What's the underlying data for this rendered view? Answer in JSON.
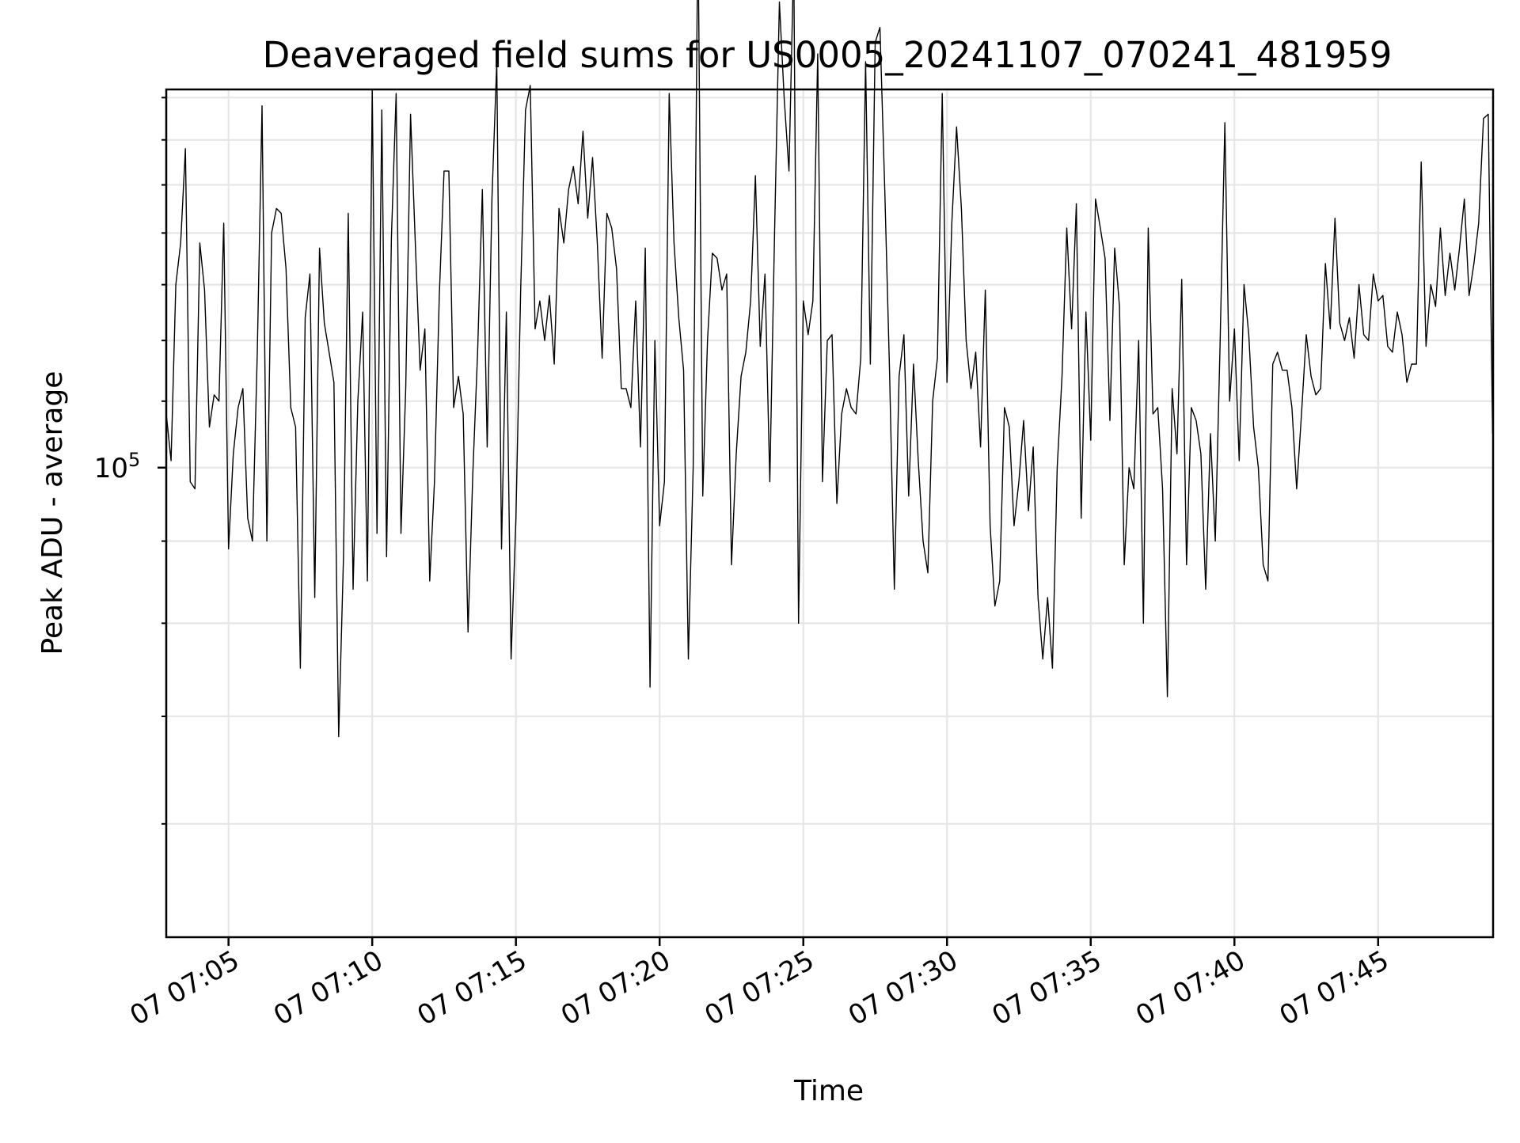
{
  "chart_data": {
    "type": "line",
    "title": "Deaveraged field sums for US0005_20241107_070241_481959",
    "xlabel": "Time",
    "ylabel": "Peak ADU - average",
    "x_tick_labels": [
      "07 07:05",
      "07 07:10",
      "07 07:15",
      "07 07:20",
      "07 07:25",
      "07 07:30",
      "07 07:35",
      "07 07:40",
      "07 07:45"
    ],
    "y_tick_labels": [
      {
        "base": "10",
        "exponent": "5",
        "value": 100000
      }
    ],
    "y_scale": "log",
    "ylim": [
      51000,
      172000
    ],
    "xlim": [
      "2024-11-07 07:02:50",
      "2024-11-07 07:49:00"
    ],
    "grid": true,
    "legend": "none",
    "line_color": "#000000",
    "series": [
      {
        "values": [
          [
            0,
            108000
          ],
          [
            10,
            101000
          ],
          [
            20,
            130000
          ],
          [
            30,
            138000
          ],
          [
            40,
            158000
          ],
          [
            50,
            98000
          ],
          [
            60,
            97000
          ],
          [
            70,
            138000
          ],
          [
            80,
            129000
          ],
          [
            90,
            106000
          ],
          [
            100,
            111000
          ],
          [
            110,
            110000
          ],
          [
            120,
            142000
          ],
          [
            130,
            89000
          ],
          [
            140,
            102000
          ],
          [
            150,
            109000
          ],
          [
            160,
            112000
          ],
          [
            170,
            93000
          ],
          [
            180,
            90000
          ],
          [
            190,
            118000
          ],
          [
            200,
            168000
          ],
          [
            210,
            90000
          ],
          [
            220,
            140000
          ],
          [
            230,
            145000
          ],
          [
            240,
            144000
          ],
          [
            250,
            133000
          ],
          [
            260,
            109000
          ],
          [
            270,
            106000
          ],
          [
            280,
            75000
          ],
          [
            290,
            124000
          ],
          [
            300,
            132000
          ],
          [
            310,
            83000
          ],
          [
            320,
            137000
          ],
          [
            330,
            123000
          ],
          [
            340,
            118000
          ],
          [
            350,
            113000
          ],
          [
            360,
            68000
          ],
          [
            370,
            88000
          ],
          [
            380,
            144000
          ],
          [
            390,
            84000
          ],
          [
            400,
            110000
          ],
          [
            410,
            125000
          ],
          [
            420,
            85000
          ],
          [
            430,
            172000
          ],
          [
            440,
            91000
          ],
          [
            450,
            167000
          ],
          [
            460,
            88000
          ],
          [
            470,
            139000
          ],
          [
            480,
            171000
          ],
          [
            490,
            91000
          ],
          [
            500,
            112000
          ],
          [
            510,
            166000
          ],
          [
            520,
            138000
          ],
          [
            530,
            115000
          ],
          [
            540,
            122000
          ],
          [
            550,
            85000
          ],
          [
            560,
            98000
          ],
          [
            570,
            128000
          ],
          [
            580,
            153000
          ],
          [
            590,
            153000
          ],
          [
            600,
            109000
          ],
          [
            610,
            114000
          ],
          [
            620,
            108000
          ],
          [
            630,
            79000
          ],
          [
            640,
            99000
          ],
          [
            650,
            118000
          ],
          [
            660,
            149000
          ],
          [
            670,
            103000
          ],
          [
            680,
            147000
          ],
          [
            690,
            179000
          ],
          [
            700,
            89000
          ],
          [
            710,
            125000
          ],
          [
            720,
            76000
          ],
          [
            730,
            93000
          ],
          [
            740,
            129000
          ],
          [
            750,
            167000
          ],
          [
            760,
            173000
          ],
          [
            770,
            122000
          ],
          [
            780,
            127000
          ],
          [
            790,
            120000
          ],
          [
            800,
            128000
          ],
          [
            810,
            116000
          ],
          [
            820,
            145000
          ],
          [
            830,
            138000
          ],
          [
            840,
            149000
          ],
          [
            850,
            154000
          ],
          [
            860,
            146000
          ],
          [
            870,
            162000
          ],
          [
            880,
            143000
          ],
          [
            890,
            156000
          ],
          [
            900,
            138000
          ],
          [
            910,
            117000
          ],
          [
            920,
            144000
          ],
          [
            930,
            141000
          ],
          [
            940,
            133000
          ],
          [
            950,
            112000
          ],
          [
            960,
            112000
          ],
          [
            970,
            109000
          ],
          [
            980,
            127000
          ],
          [
            990,
            103000
          ],
          [
            1000,
            137000
          ],
          [
            1010,
            73000
          ],
          [
            1020,
            120000
          ],
          [
            1030,
            92000
          ],
          [
            1040,
            98000
          ],
          [
            1050,
            171000
          ],
          [
            1060,
            138000
          ],
          [
            1070,
            124000
          ],
          [
            1080,
            115000
          ],
          [
            1090,
            76000
          ],
          [
            1100,
            100000
          ],
          [
            1110,
            220000
          ],
          [
            1120,
            96000
          ],
          [
            1130,
            120000
          ],
          [
            1140,
            136000
          ],
          [
            1150,
            135000
          ],
          [
            1160,
            129000
          ],
          [
            1170,
            132000
          ],
          [
            1180,
            87000
          ],
          [
            1190,
            102000
          ],
          [
            1200,
            114000
          ],
          [
            1210,
            118000
          ],
          [
            1220,
            127000
          ],
          [
            1230,
            152000
          ],
          [
            1240,
            119000
          ],
          [
            1250,
            132000
          ],
          [
            1260,
            98000
          ],
          [
            1270,
            140000
          ],
          [
            1280,
            195000
          ],
          [
            1290,
            170000
          ],
          [
            1300,
            153000
          ],
          [
            1310,
            208000
          ],
          [
            1320,
            80000
          ],
          [
            1330,
            127000
          ],
          [
            1340,
            121000
          ],
          [
            1350,
            127000
          ],
          [
            1360,
            181000
          ],
          [
            1370,
            98000
          ],
          [
            1380,
            120000
          ],
          [
            1390,
            121000
          ],
          [
            1400,
            95000
          ],
          [
            1410,
            108000
          ],
          [
            1420,
            112000
          ],
          [
            1430,
            109000
          ],
          [
            1440,
            108000
          ],
          [
            1450,
            117000
          ],
          [
            1460,
            179000
          ],
          [
            1470,
            116000
          ],
          [
            1480,
            184000
          ],
          [
            1490,
            188000
          ],
          [
            1500,
            149000
          ],
          [
            1510,
            115000
          ],
          [
            1520,
            84000
          ],
          [
            1530,
            114000
          ],
          [
            1540,
            121000
          ],
          [
            1550,
            96000
          ],
          [
            1560,
            116000
          ],
          [
            1570,
            101000
          ],
          [
            1580,
            90000
          ],
          [
            1590,
            86000
          ],
          [
            1600,
            110000
          ],
          [
            1610,
            117000
          ],
          [
            1620,
            171000
          ],
          [
            1630,
            113000
          ],
          [
            1640,
            142000
          ],
          [
            1650,
            163000
          ],
          [
            1660,
            145000
          ],
          [
            1670,
            120000
          ],
          [
            1680,
            112000
          ],
          [
            1690,
            118000
          ],
          [
            1700,
            103000
          ],
          [
            1710,
            129000
          ],
          [
            1720,
            92000
          ],
          [
            1730,
            82000
          ],
          [
            1740,
            85000
          ],
          [
            1750,
            109000
          ],
          [
            1760,
            106000
          ],
          [
            1770,
            92000
          ],
          [
            1780,
            98000
          ],
          [
            1790,
            107000
          ],
          [
            1800,
            94000
          ],
          [
            1810,
            103000
          ],
          [
            1820,
            83000
          ],
          [
            1830,
            76000
          ],
          [
            1840,
            83000
          ],
          [
            1850,
            75000
          ],
          [
            1860,
            100000
          ],
          [
            1870,
            114000
          ],
          [
            1880,
            141000
          ],
          [
            1890,
            122000
          ],
          [
            1900,
            146000
          ],
          [
            1910,
            93000
          ],
          [
            1920,
            125000
          ],
          [
            1930,
            104000
          ],
          [
            1940,
            147000
          ],
          [
            1950,
            141000
          ],
          [
            1960,
            135000
          ],
          [
            1970,
            107000
          ],
          [
            1980,
            137000
          ],
          [
            1990,
            126000
          ],
          [
            2000,
            87000
          ],
          [
            2010,
            100000
          ],
          [
            2020,
            97000
          ],
          [
            2030,
            120000
          ],
          [
            2040,
            80000
          ],
          [
            2050,
            141000
          ],
          [
            2060,
            108000
          ],
          [
            2070,
            109000
          ],
          [
            2080,
            97000
          ],
          [
            2090,
            72000
          ],
          [
            2100,
            112000
          ],
          [
            2110,
            102000
          ],
          [
            2120,
            131000
          ],
          [
            2130,
            87000
          ],
          [
            2140,
            109000
          ],
          [
            2150,
            107000
          ],
          [
            2160,
            102000
          ],
          [
            2170,
            84000
          ],
          [
            2180,
            105000
          ],
          [
            2190,
            90000
          ],
          [
            2200,
            119000
          ],
          [
            2210,
            164000
          ],
          [
            2220,
            110000
          ],
          [
            2230,
            122000
          ],
          [
            2240,
            101000
          ],
          [
            2250,
            130000
          ],
          [
            2260,
            121000
          ],
          [
            2270,
            106000
          ],
          [
            2280,
            100000
          ],
          [
            2290,
            87000
          ],
          [
            2300,
            85000
          ],
          [
            2310,
            116000
          ],
          [
            2320,
            118000
          ],
          [
            2330,
            115000
          ],
          [
            2340,
            115000
          ],
          [
            2350,
            109000
          ],
          [
            2360,
            97000
          ],
          [
            2370,
            108000
          ],
          [
            2380,
            121000
          ],
          [
            2390,
            114000
          ],
          [
            2400,
            111000
          ],
          [
            2410,
            112000
          ],
          [
            2420,
            134000
          ],
          [
            2430,
            122000
          ],
          [
            2440,
            143000
          ],
          [
            2450,
            123000
          ],
          [
            2460,
            120000
          ],
          [
            2470,
            124000
          ],
          [
            2480,
            117000
          ],
          [
            2490,
            130000
          ],
          [
            2500,
            121000
          ],
          [
            2510,
            120000
          ],
          [
            2520,
            132000
          ],
          [
            2530,
            127000
          ],
          [
            2540,
            128000
          ],
          [
            2550,
            119000
          ],
          [
            2560,
            118000
          ],
          [
            2570,
            125000
          ],
          [
            2580,
            121000
          ],
          [
            2590,
            113000
          ],
          [
            2600,
            116000
          ],
          [
            2610,
            116000
          ],
          [
            2620,
            155000
          ],
          [
            2630,
            119000
          ],
          [
            2640,
            130000
          ],
          [
            2650,
            126000
          ],
          [
            2660,
            141000
          ],
          [
            2670,
            128000
          ],
          [
            2680,
            136000
          ],
          [
            2690,
            129000
          ],
          [
            2700,
            137000
          ],
          [
            2710,
            147000
          ],
          [
            2720,
            128000
          ],
          [
            2730,
            134000
          ],
          [
            2740,
            142000
          ],
          [
            2750,
            165000
          ],
          [
            2760,
            166000
          ],
          [
            2769,
            105000
          ]
        ]
      }
    ]
  }
}
